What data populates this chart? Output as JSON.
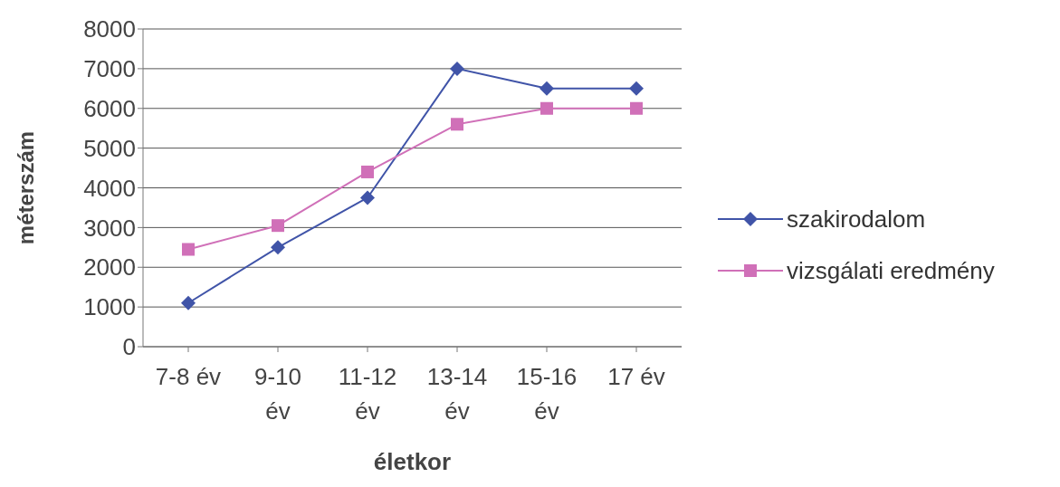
{
  "chart_data": {
    "type": "line",
    "xlabel": "életkor",
    "ylabel": "méterszám",
    "categories": [
      "7-8 év",
      "9-10 év",
      "11-12 év",
      "13-14 év",
      "15-16 év",
      "17 év"
    ],
    "series": [
      {
        "name": "szakirodalom",
        "color": "#4054a8",
        "marker": "diamond",
        "values": [
          1100,
          2500,
          3750,
          7000,
          6500,
          6500
        ]
      },
      {
        "name": "vizsgálati eredmény",
        "color": "#d070b8",
        "marker": "square",
        "values": [
          2450,
          3050,
          4400,
          5600,
          6000,
          6000
        ]
      }
    ],
    "ylim": [
      0,
      8000
    ],
    "yticks": [
      0,
      1000,
      2000,
      3000,
      4000,
      5000,
      6000,
      7000,
      8000
    ],
    "grid": "y",
    "legend": "right",
    "line_style": "solid"
  }
}
